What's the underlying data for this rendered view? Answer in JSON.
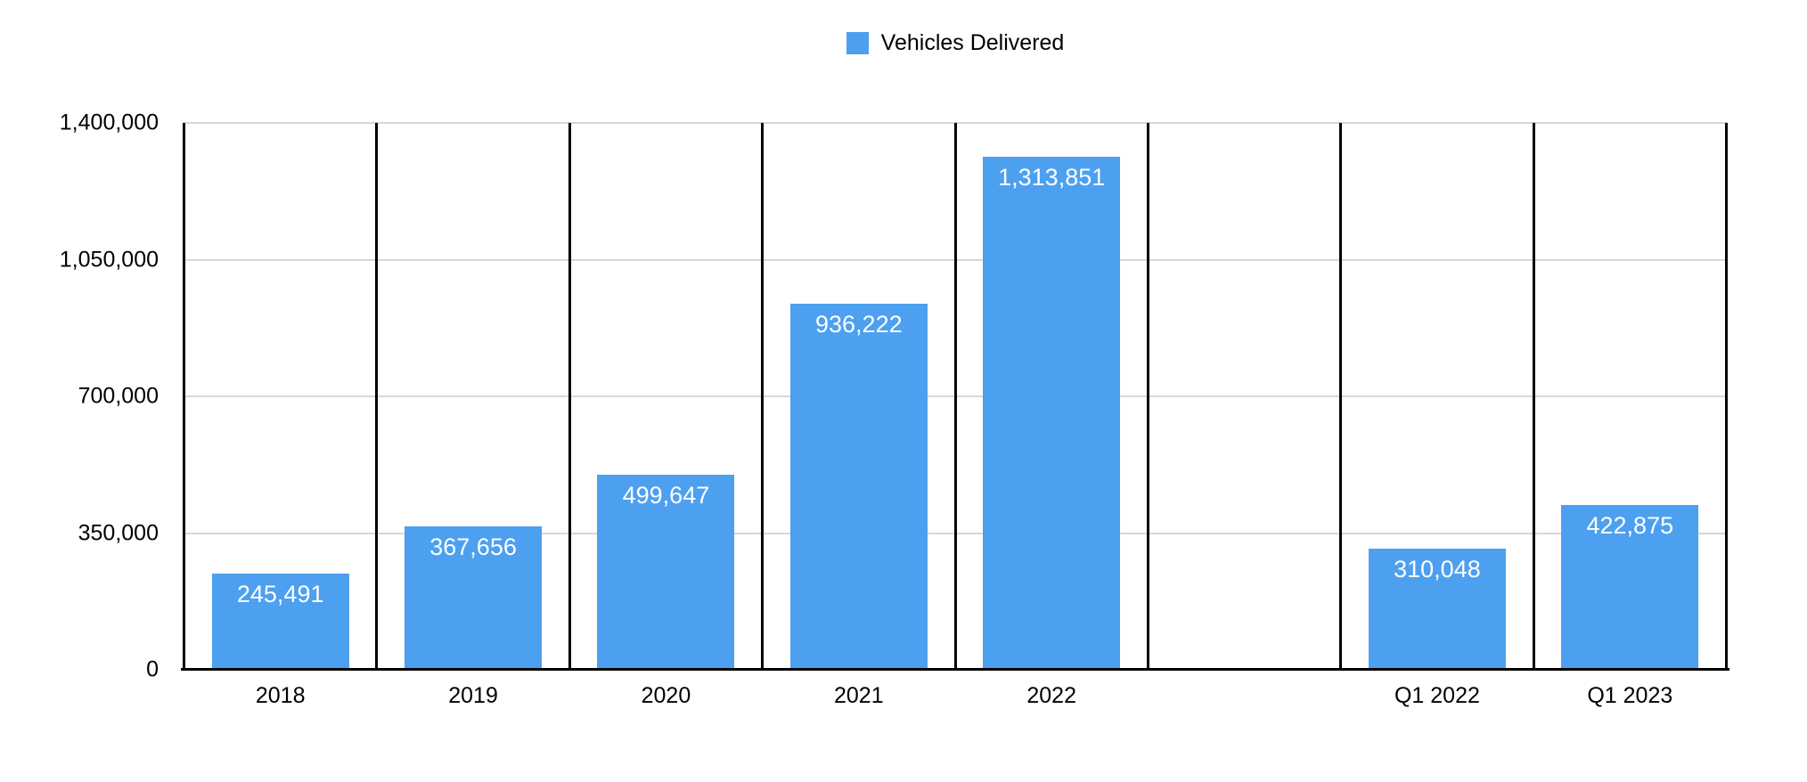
{
  "legend": {
    "label": "Vehicles Delivered"
  },
  "colors": {
    "bar": "#4DA0F0",
    "gridline": "#D7D7D7",
    "axis": "#000000",
    "bar_label_text": "#FFFFFF",
    "background": "#FFFFFF"
  },
  "chart_data": {
    "type": "bar",
    "title": "",
    "xlabel": "",
    "ylabel": "",
    "legend_entries": [
      "Vehicles Delivered"
    ],
    "legend_position": "top-center",
    "grid": "horizontal",
    "categories": [
      "2018",
      "2019",
      "2020",
      "2021",
      "2022",
      "",
      "Q1 2022",
      "Q1 2023"
    ],
    "values": [
      245491,
      367656,
      499647,
      936222,
      1313851,
      null,
      310048,
      422875
    ],
    "value_labels": [
      "245,491",
      "367,656",
      "499,647",
      "936,222",
      "1,313,851",
      "",
      "310,048",
      "422,875"
    ],
    "ylim": [
      0,
      1400000
    ],
    "yticks": [
      {
        "value": 0,
        "label": "0"
      },
      {
        "value": 350000,
        "label": "350,000"
      },
      {
        "value": 700000,
        "label": "700,000"
      },
      {
        "value": 1050000,
        "label": "1,050,000"
      },
      {
        "value": 1400000,
        "label": "1,400,000"
      }
    ]
  }
}
